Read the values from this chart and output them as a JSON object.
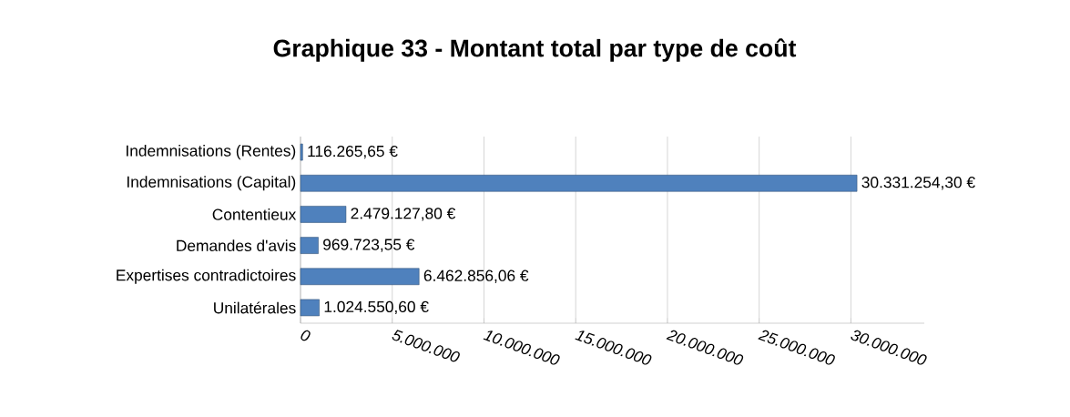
{
  "chart_data": {
    "type": "bar",
    "orientation": "horizontal",
    "title": "Graphique 33 - Montant total par type de coût",
    "categories": [
      "Indemnisations (Rentes)",
      "Indemnisations (Capital)",
      "Contentieux",
      "Demandes d'avis",
      "Expertises contradictoires",
      "Unilatérales"
    ],
    "values": [
      116265.65,
      30331254.3,
      2479127.8,
      969723.55,
      6462856.06,
      1024550.6
    ],
    "value_labels": [
      "116.265,65 €",
      "30.331.254,30 €",
      "2.479.127,80 €",
      "969.723,55 €",
      "6.462.856,06 €",
      "1.024.550,60 €"
    ],
    "color": "#4f81bd",
    "xlim": [
      0,
      34000000
    ],
    "xticks": [
      0,
      {
        "value": 5000000,
        "label": "5.000.000"
      },
      {
        "value": 10000000,
        "label": "10.000.000"
      },
      {
        "value": 15000000,
        "label": "15.000.000"
      },
      {
        "value": 20000000,
        "label": "20.000.000"
      },
      {
        "value": 25000000,
        "label": "25.000.000"
      },
      {
        "value": 30000000,
        "label": "30.000.000"
      }
    ],
    "grid": "x"
  }
}
